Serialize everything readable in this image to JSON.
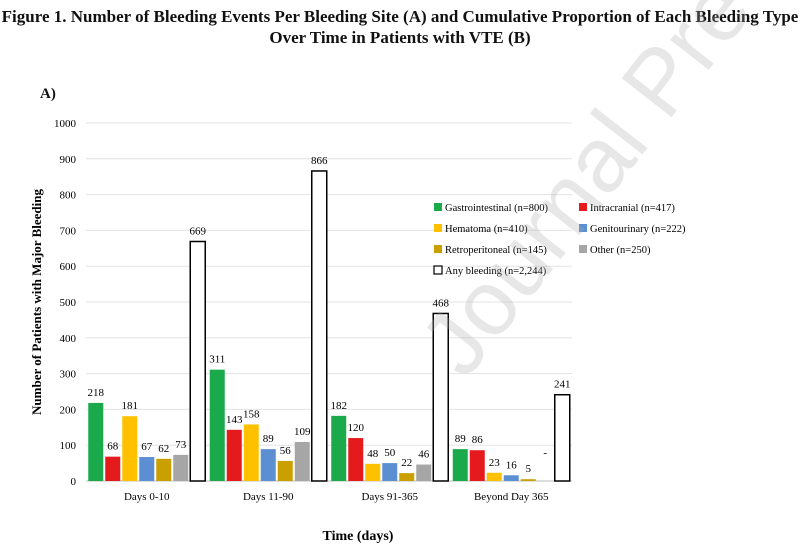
{
  "figure": {
    "title_line1": "Figure 1. Number of Bleeding Events Per Bleeding Site (A) and Cumulative Proportion of Each Bleeding Type",
    "title_line2": "Over Time in Patients with VTE (B)",
    "panel_label": "A)",
    "watermark": "Journal Pre-proof"
  },
  "chart_data": {
    "type": "bar",
    "title": "",
    "xlabel": "Time (days)",
    "ylabel": "Number of Patients with Major Bleeding",
    "ylim": [
      0,
      1000
    ],
    "yticks": [
      0,
      100,
      200,
      300,
      400,
      500,
      600,
      700,
      800,
      900,
      1000
    ],
    "grid": true,
    "legend_position": "right",
    "categories": [
      "Days 0-10",
      "Days 11-90",
      "Days 91-365",
      "Beyond Day 365"
    ],
    "series": [
      {
        "name": "Gastrointestinal (n=800)",
        "values": [
          218,
          311,
          182,
          89
        ],
        "color": "#1aaa4b"
      },
      {
        "name": "Intracranial (n=417)",
        "values": [
          68,
          143,
          120,
          86
        ],
        "color": "#e41a1c"
      },
      {
        "name": "Hematoma (n=410)",
        "values": [
          181,
          158,
          48,
          23
        ],
        "color": "#ffc000"
      },
      {
        "name": "Genitourinary (n=222)",
        "values": [
          67,
          89,
          50,
          16
        ],
        "color": "#5b8fd1"
      },
      {
        "name": "Retroperitoneal (n=145)",
        "values": [
          62,
          56,
          22,
          5
        ],
        "color": "#c9a000"
      },
      {
        "name": "Other (n=250)",
        "values": [
          73,
          109,
          46,
          null
        ],
        "color": "#a6a6a6"
      },
      {
        "name": "Any bleeding (n=2,244)",
        "values": [
          669,
          866,
          468,
          241
        ],
        "color": "#ffffff"
      }
    ],
    "data_labels": [
      [
        "218",
        "68",
        "181",
        "67",
        "62",
        "73",
        "669"
      ],
      [
        "311",
        "143",
        "158",
        "89",
        "56",
        "109",
        "866"
      ],
      [
        "182",
        "120",
        "48",
        "50",
        "22",
        "46",
        "468"
      ],
      [
        "89",
        "86",
        "23",
        "16",
        "5",
        "-",
        "241"
      ]
    ]
  }
}
